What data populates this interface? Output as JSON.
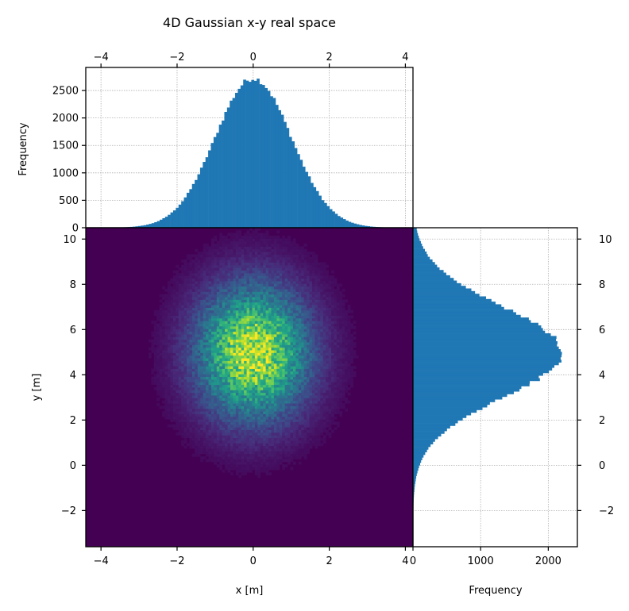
{
  "chart_data": [
    {
      "type": "histogram",
      "panel": "top-marginal",
      "title": "4D Gaussian x-y real space",
      "xlabel": "",
      "ylabel": "Frequency",
      "xlim": [
        -4.4,
        4.2
      ],
      "ylim": [
        0,
        2920
      ],
      "xticks": [
        -4,
        -2,
        0,
        2,
        4
      ],
      "xtick_labels": [
        "−4",
        "−2",
        "0",
        "2",
        "4"
      ],
      "yticks": [
        0,
        500,
        1000,
        1500,
        2000,
        2500
      ],
      "ytick_labels": [
        "0",
        "500",
        "1000",
        "1500",
        "2000",
        "2500"
      ],
      "distribution": {
        "mean": 0.0,
        "sigma": 1.0,
        "peak": 2720
      },
      "bin_range": [
        -4.3,
        4.2
      ],
      "bins": 120,
      "color": "#1f77b4",
      "grid": true
    },
    {
      "type": "heatmap",
      "panel": "main",
      "xlabel": "x [m]",
      "ylabel": "y [m]",
      "xlim": [
        -4.4,
        4.2
      ],
      "ylim": [
        -3.6,
        10.5
      ],
      "xticks": [
        -4,
        -2,
        0,
        2,
        4
      ],
      "xtick_labels": [
        "−4",
        "−2",
        "0",
        "2",
        "4"
      ],
      "yticks": [
        -2,
        0,
        2,
        4,
        6,
        8,
        10
      ],
      "ytick_labels": [
        "−2",
        "0",
        "2",
        "4",
        "6",
        "8",
        "10"
      ],
      "center": {
        "x": 0.0,
        "y": 5.0
      },
      "sigma": {
        "x": 1.0,
        "y": 2.0
      },
      "bins": {
        "x": 120,
        "y": 120
      },
      "colormap": "viridis",
      "colormap_stops": [
        "#440154",
        "#482878",
        "#3e4989",
        "#31688e",
        "#26828e",
        "#1f9e89",
        "#35b779",
        "#6ece58",
        "#b5de2b",
        "#fde725"
      ]
    },
    {
      "type": "histogram",
      "panel": "right-marginal",
      "orientation": "horizontal",
      "xlabel": "Frequency",
      "ylabel": "",
      "xlim": [
        0,
        2430
      ],
      "ylim": [
        -3.6,
        10.5
      ],
      "xticks": [
        0,
        1000,
        2000
      ],
      "xtick_labels": [
        "0",
        "1000",
        "2000"
      ],
      "yticks": [
        -2,
        0,
        2,
        4,
        6,
        8,
        10
      ],
      "ytick_labels": [
        "−2",
        "0",
        "2",
        "4",
        "6",
        "8",
        "10"
      ],
      "distribution": {
        "mean": 5.0,
        "sigma": 2.0,
        "peak": 2200
      },
      "bin_range": [
        -3.5,
        10.5
      ],
      "bins": 120,
      "color": "#1f77b4",
      "grid": true
    }
  ]
}
